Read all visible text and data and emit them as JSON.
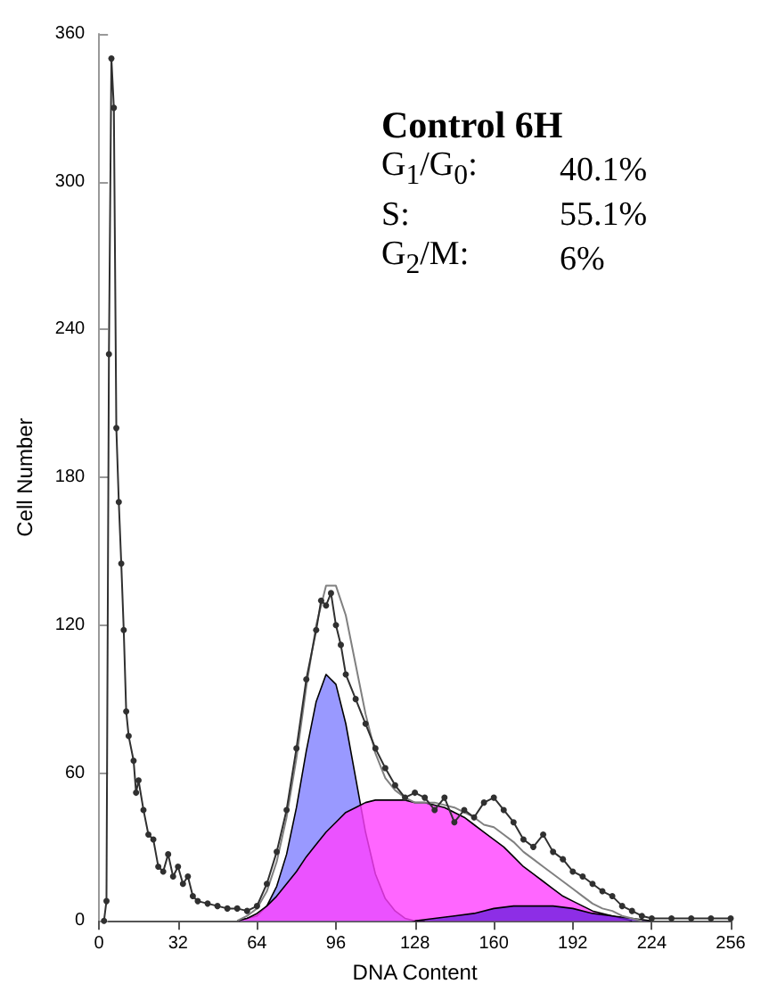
{
  "chart_data": {
    "type": "line",
    "title": "Control 6H",
    "xlabel": "DNA Content",
    "ylabel": "Cell Number",
    "annotations": [
      "G$_{1}$/G$_{0}$:\t40.1%",
      "S:\t55.1%",
      "G$_{2}$/M:\t6%"
    ],
    "xlim": [
      0,
      256
    ],
    "xticks": [
      0,
      32,
      64,
      96,
      128,
      160,
      192,
      224,
      256
    ],
    "ylim": [
      0,
      360
    ],
    "yticks": [
      0,
      60,
      120,
      180,
      240,
      300,
      360
    ],
    "grid": false,
    "series": [
      {
        "type": "area",
        "color": "#8080ff",
        "x": [
          56,
          60,
          64,
          68,
          72,
          76,
          80,
          84,
          88,
          92,
          96,
          100,
          104,
          108,
          112,
          116,
          120,
          124,
          128,
          132
        ],
        "values": [
          0,
          1,
          2,
          6,
          14,
          27,
          46,
          69,
          89,
          100,
          96,
          80,
          58,
          36,
          19,
          9,
          4,
          1,
          0,
          0
        ]
      },
      {
        "type": "area",
        "color": "#ff40ff",
        "x": [
          56,
          60,
          64,
          68,
          72,
          76,
          80,
          84,
          88,
          92,
          96,
          100,
          104,
          108,
          112,
          116,
          120,
          124,
          128,
          132,
          136,
          140,
          144,
          148,
          152,
          156,
          160,
          164,
          168,
          172,
          176,
          180,
          184,
          188,
          192,
          196,
          200,
          204,
          208,
          212,
          216
        ],
        "values": [
          0,
          1,
          3,
          6,
          10,
          15,
          20,
          26,
          31,
          36,
          40,
          44,
          46,
          48,
          49,
          49,
          49,
          49,
          48,
          48,
          47,
          46,
          44,
          42,
          39,
          36,
          33,
          30,
          26,
          22,
          19,
          16,
          13,
          10,
          8,
          6,
          4,
          3,
          2,
          1,
          0
        ]
      },
      {
        "type": "area",
        "color": "#7020e0",
        "x": [
          128,
          136,
          144,
          152,
          160,
          168,
          176,
          184,
          192,
          200,
          208,
          216,
          224
        ],
        "values": [
          0,
          1,
          2,
          3,
          5,
          6,
          6,
          6,
          5,
          3,
          2,
          1,
          0
        ]
      },
      {
        "color": "#808080",
        "marker": "none",
        "x": [
          56,
          60,
          64,
          68,
          72,
          76,
          80,
          84,
          88,
          92,
          96,
          100,
          104,
          108,
          112,
          116,
          120,
          124,
          128,
          132,
          136,
          140,
          144,
          148,
          152,
          156,
          160,
          164,
          168,
          172,
          176,
          180,
          184,
          188,
          192,
          196,
          200,
          204,
          208,
          212,
          216,
          220
        ],
        "values": [
          0,
          2,
          5,
          12,
          24,
          42,
          66,
          95,
          120,
          136,
          136,
          124,
          104,
          84,
          68,
          58,
          53,
          50,
          48,
          48,
          48,
          47,
          46,
          44,
          42,
          39,
          38,
          35,
          32,
          28,
          25,
          22,
          19,
          16,
          13,
          10,
          7,
          5,
          4,
          2,
          1,
          0
        ]
      },
      {
        "color": "#303030",
        "marker": "circle",
        "x": [
          2,
          3,
          4,
          5,
          6,
          7,
          8,
          9,
          10,
          11,
          12,
          14,
          15,
          16,
          18,
          20,
          22,
          24,
          26,
          28,
          30,
          32,
          34,
          36,
          38,
          40,
          44,
          48,
          52,
          56,
          60,
          64,
          68,
          72,
          76,
          80,
          84,
          88,
          90,
          92,
          94,
          96,
          98,
          100,
          104,
          108,
          112,
          116,
          120,
          124,
          128,
          132,
          136,
          140,
          144,
          148,
          152,
          156,
          160,
          164,
          168,
          172,
          176,
          180,
          184,
          188,
          192,
          196,
          200,
          204,
          208,
          212,
          216,
          220,
          224,
          232,
          240,
          248,
          256
        ],
        "values": [
          0,
          8,
          230,
          350,
          330,
          200,
          170,
          145,
          118,
          85,
          75,
          65,
          52,
          57,
          45,
          35,
          33,
          22,
          20,
          27,
          18,
          22,
          15,
          18,
          10,
          8,
          7,
          6,
          5,
          5,
          4,
          6,
          15,
          28,
          45,
          70,
          98,
          118,
          130,
          128,
          133,
          120,
          112,
          100,
          90,
          80,
          70,
          62,
          55,
          50,
          52,
          50,
          45,
          50,
          40,
          45,
          42,
          48,
          50,
          45,
          40,
          33,
          30,
          35,
          28,
          25,
          20,
          18,
          15,
          12,
          10,
          6,
          4,
          2,
          1,
          1,
          1,
          1,
          1
        ]
      }
    ]
  }
}
